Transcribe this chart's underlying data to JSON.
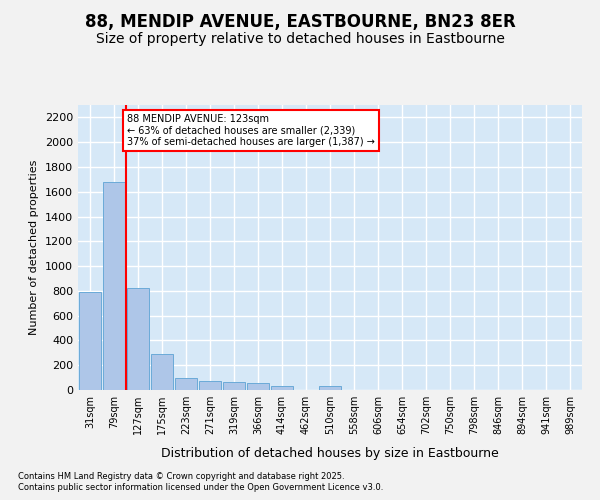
{
  "title": "88, MENDIP AVENUE, EASTBOURNE, BN23 8ER",
  "subtitle": "Size of property relative to detached houses in Eastbourne",
  "xlabel": "Distribution of detached houses by size in Eastbourne",
  "ylabel": "Number of detached properties",
  "footnote1": "Contains HM Land Registry data © Crown copyright and database right 2025.",
  "footnote2": "Contains public sector information licensed under the Open Government Licence v3.0.",
  "bins": [
    "31sqm",
    "79sqm",
    "127sqm",
    "175sqm",
    "223sqm",
    "271sqm",
    "319sqm",
    "366sqm",
    "414sqm",
    "462sqm",
    "510sqm",
    "558sqm",
    "606sqm",
    "654sqm",
    "702sqm",
    "750sqm",
    "798sqm",
    "846sqm",
    "894sqm",
    "941sqm",
    "989sqm"
  ],
  "values": [
    790,
    1680,
    820,
    290,
    100,
    70,
    65,
    55,
    30,
    0,
    30,
    0,
    0,
    0,
    0,
    0,
    0,
    0,
    0,
    0,
    0
  ],
  "bar_color": "#aec6e8",
  "bar_edge_color": "#6baad8",
  "red_line_index": 2,
  "annotation_line1": "88 MENDIP AVENUE: 123sqm",
  "annotation_line2": "← 63% of detached houses are smaller (2,339)",
  "annotation_line3": "37% of semi-detached houses are larger (1,387) →",
  "ylim": [
    0,
    2300
  ],
  "yticks": [
    0,
    200,
    400,
    600,
    800,
    1000,
    1200,
    1400,
    1600,
    1800,
    2000,
    2200
  ],
  "plot_background": "#d6e8f7",
  "fig_background": "#f2f2f2",
  "grid_color": "#ffffff",
  "title_fontsize": 12,
  "subtitle_fontsize": 10,
  "ylabel_fontsize": 8,
  "xlabel_fontsize": 9,
  "tick_fontsize": 7,
  "footnote_fontsize": 6
}
